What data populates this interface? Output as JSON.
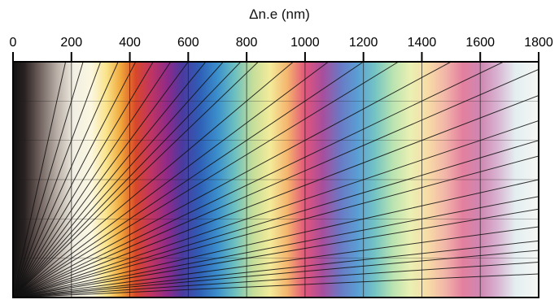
{
  "chart_data": {
    "type": "diagram",
    "title": "Δn.e  (nm)",
    "axis_label": "Δn.e  (nm)",
    "x_ticks": [
      0,
      200,
      400,
      600,
      800,
      1000,
      1200,
      1400,
      1600,
      1800
    ],
    "xlim": [
      0,
      1800
    ],
    "color_stops": [
      {
        "nm": 0,
        "color": "#111111"
      },
      {
        "nm": 40,
        "color": "#2a2222"
      },
      {
        "nm": 90,
        "color": "#6e605c"
      },
      {
        "nm": 150,
        "color": "#b8aea6"
      },
      {
        "nm": 210,
        "color": "#f2efe4"
      },
      {
        "nm": 270,
        "color": "#fbf7df"
      },
      {
        "nm": 320,
        "color": "#fae38a"
      },
      {
        "nm": 370,
        "color": "#f0a63a"
      },
      {
        "nm": 420,
        "color": "#d8482a"
      },
      {
        "nm": 470,
        "color": "#c23560"
      },
      {
        "nm": 530,
        "color": "#8d2a8a"
      },
      {
        "nm": 580,
        "color": "#4b3a9f"
      },
      {
        "nm": 640,
        "color": "#2e5fb6"
      },
      {
        "nm": 700,
        "color": "#3b8fcc"
      },
      {
        "nm": 760,
        "color": "#6cc0c0"
      },
      {
        "nm": 820,
        "color": "#c3dd9a"
      },
      {
        "nm": 880,
        "color": "#f3ec9a"
      },
      {
        "nm": 940,
        "color": "#f5b46d"
      },
      {
        "nm": 1000,
        "color": "#e2557b"
      },
      {
        "nm": 1060,
        "color": "#a84e9c"
      },
      {
        "nm": 1120,
        "color": "#6b78c4"
      },
      {
        "nm": 1180,
        "color": "#5a9ed4"
      },
      {
        "nm": 1240,
        "color": "#74c4c4"
      },
      {
        "nm": 1300,
        "color": "#b8e3b0"
      },
      {
        "nm": 1360,
        "color": "#eaf0b3"
      },
      {
        "nm": 1420,
        "color": "#f7dca6"
      },
      {
        "nm": 1480,
        "color": "#f2b5a8"
      },
      {
        "nm": 1540,
        "color": "#e3809f"
      },
      {
        "nm": 1600,
        "color": "#cf86b1"
      },
      {
        "nm": 1660,
        "color": "#d9b4d2"
      },
      {
        "nm": 1720,
        "color": "#e4eef0"
      },
      {
        "nm": 1800,
        "color": "#f6f7f4"
      }
    ],
    "birefringence_lines": [
      0.003,
      0.004,
      0.005,
      0.006,
      0.007,
      0.008,
      0.009,
      0.01,
      0.011,
      0.012,
      0.013,
      0.014,
      0.016,
      0.018,
      0.02,
      0.022,
      0.025,
      0.028,
      0.031,
      0.035,
      0.04,
      0.045,
      0.05,
      0.06,
      0.07,
      0.08,
      0.1,
      0.125,
      0.15,
      0.2,
      0.3
    ],
    "thickness_max_um": 60,
    "grid": true
  }
}
